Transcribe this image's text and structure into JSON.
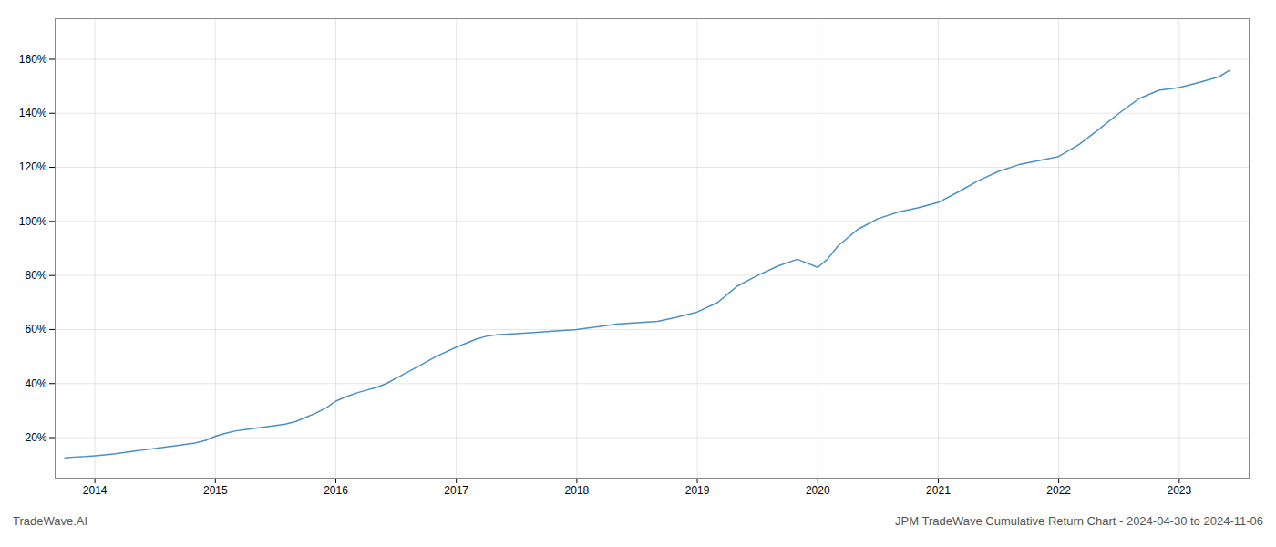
{
  "chart_data": {
    "type": "line",
    "title": "JPM TradeWave Cumulative Return Chart - 2024-04-30 to 2024-11-06",
    "annotations": [
      "TradeWave.AI"
    ],
    "x": [
      2013.75,
      2013.83,
      2013.92,
      2014.0,
      2014.08,
      2014.17,
      2014.25,
      2014.33,
      2014.42,
      2014.5,
      2014.58,
      2014.67,
      2014.75,
      2014.83,
      2014.92,
      2015.0,
      2015.08,
      2015.17,
      2015.25,
      2015.33,
      2015.42,
      2015.5,
      2015.58,
      2015.67,
      2015.75,
      2015.83,
      2015.92,
      2016.0,
      2016.08,
      2016.17,
      2016.25,
      2016.33,
      2016.42,
      2016.5,
      2016.67,
      2016.83,
      2017.0,
      2017.17,
      2017.25,
      2017.33,
      2017.5,
      2017.67,
      2017.83,
      2018.0,
      2018.08,
      2018.17,
      2018.25,
      2018.33,
      2018.5,
      2018.67,
      2018.83,
      2019.0,
      2019.17,
      2019.25,
      2019.33,
      2019.5,
      2019.67,
      2019.83,
      2020.0,
      2020.08,
      2020.17,
      2020.33,
      2020.5,
      2020.67,
      2020.83,
      2021.0,
      2021.17,
      2021.33,
      2021.5,
      2021.67,
      2021.83,
      2022.0,
      2022.17,
      2022.33,
      2022.5,
      2022.67,
      2022.83,
      2023.0,
      2023.17,
      2023.33,
      2023.42
    ],
    "values": [
      12.5,
      12.8,
      13.0,
      13.3,
      13.6,
      14.0,
      14.5,
      15.0,
      15.5,
      16.0,
      16.5,
      17.0,
      17.5,
      18.0,
      19.0,
      20.5,
      21.5,
      22.5,
      23.0,
      23.5,
      24.0,
      24.5,
      25.0,
      26.0,
      27.5,
      29.0,
      31.0,
      33.5,
      35.0,
      36.5,
      37.5,
      38.5,
      40.0,
      42.0,
      46.0,
      50.0,
      53.5,
      56.5,
      57.5,
      58.0,
      58.5,
      59.0,
      59.5,
      60.0,
      60.5,
      61.0,
      61.5,
      62.0,
      62.5,
      63.0,
      64.5,
      66.5,
      70.0,
      73.0,
      76.0,
      80.0,
      83.5,
      86.0,
      83.0,
      86.0,
      91.0,
      97.0,
      101.0,
      103.5,
      105.0,
      107.0,
      111.0,
      115.0,
      118.5,
      121.0,
      122.5,
      124.0,
      128.5,
      134.0,
      140.0,
      145.5,
      148.5,
      149.5,
      151.5,
      153.5,
      156.0
    ],
    "color": "#4a90c4",
    "xlim": [
      2013.67,
      2023.58
    ],
    "xticks": [
      2014,
      2015,
      2016,
      2017,
      2018,
      2019,
      2020,
      2021,
      2022,
      2023
    ],
    "ylim": [
      5,
      175
    ],
    "yticks": [
      {
        "value": 20,
        "label": "20%"
      },
      {
        "value": 40,
        "label": "40%"
      },
      {
        "value": 60,
        "label": "60%"
      },
      {
        "value": 80,
        "label": "80%"
      },
      {
        "value": 100,
        "label": "100%"
      },
      {
        "value": 120,
        "label": "120%"
      },
      {
        "value": 140,
        "label": "140%"
      },
      {
        "value": 160,
        "label": "160%"
      }
    ],
    "grid": true
  }
}
